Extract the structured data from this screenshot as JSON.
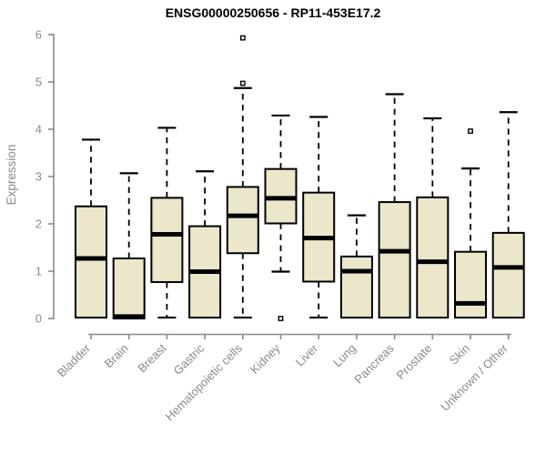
{
  "chart_data": {
    "type": "boxplot",
    "title": "ENSG00000250656 - RP11-453E17.2",
    "xlabel": "",
    "ylabel": "Expression",
    "ylim": [
      0,
      6
    ],
    "y_ticks": [
      0,
      1,
      2,
      3,
      4,
      5,
      6
    ],
    "grid": false,
    "legend": "none",
    "categories": [
      "Bladder",
      "Brain",
      "Breast",
      "Gastric",
      "Hematopoietic cells",
      "Kidney",
      "Liver",
      "Lung",
      "Pancreas",
      "Prostate",
      "Skin",
      "Unknown / Other"
    ],
    "boxes": [
      {
        "category": "Bladder",
        "whisker_low": 0.02,
        "q1": 0.02,
        "median": 1.27,
        "q3": 2.37,
        "whisker_high": 3.78,
        "outliers": []
      },
      {
        "category": "Brain",
        "whisker_low": 0.0,
        "q1": 0.0,
        "median": 0.04,
        "q3": 1.27,
        "whisker_high": 3.07,
        "outliers": []
      },
      {
        "category": "Breast",
        "whisker_low": 0.02,
        "q1": 0.77,
        "median": 1.78,
        "q3": 2.55,
        "whisker_high": 4.03,
        "outliers": []
      },
      {
        "category": "Gastric",
        "whisker_low": 0.02,
        "q1": 0.02,
        "median": 0.99,
        "q3": 1.95,
        "whisker_high": 3.11,
        "outliers": []
      },
      {
        "category": "Hematopoietic cells",
        "whisker_low": 0.02,
        "q1": 1.38,
        "median": 2.17,
        "q3": 2.78,
        "whisker_high": 4.87,
        "outliers": [
          4.97,
          5.93
        ]
      },
      {
        "category": "Kidney",
        "whisker_low": 0.99,
        "q1": 2.01,
        "median": 2.54,
        "q3": 3.16,
        "whisker_high": 4.29,
        "outliers": [
          0.0
        ]
      },
      {
        "category": "Liver",
        "whisker_low": 0.02,
        "q1": 0.78,
        "median": 1.7,
        "q3": 2.66,
        "whisker_high": 4.26,
        "outliers": []
      },
      {
        "category": "Lung",
        "whisker_low": 0.02,
        "q1": 0.02,
        "median": 1.0,
        "q3": 1.31,
        "whisker_high": 2.18,
        "outliers": []
      },
      {
        "category": "Pancreas",
        "whisker_low": 0.02,
        "q1": 0.02,
        "median": 1.42,
        "q3": 2.46,
        "whisker_high": 4.74,
        "outliers": []
      },
      {
        "category": "Prostate",
        "whisker_low": 0.02,
        "q1": 0.02,
        "median": 1.2,
        "q3": 2.56,
        "whisker_high": 4.23,
        "outliers": []
      },
      {
        "category": "Skin",
        "whisker_low": 0.02,
        "q1": 0.02,
        "median": 0.32,
        "q3": 1.41,
        "whisker_high": 3.17,
        "outliers": [
          3.96
        ]
      },
      {
        "category": "Unknown / Other",
        "whisker_low": 0.02,
        "q1": 0.02,
        "median": 1.08,
        "q3": 1.81,
        "whisker_high": 4.36,
        "outliers": []
      }
    ]
  },
  "colors": {
    "box_fill": "#ECE6CA",
    "box_border": "#000000",
    "median": "#000000",
    "whisker": "#000000",
    "axis": "#8a8a8a",
    "tick_label": "#8a8a8a",
    "title": "#000000",
    "background": "#ffffff"
  }
}
